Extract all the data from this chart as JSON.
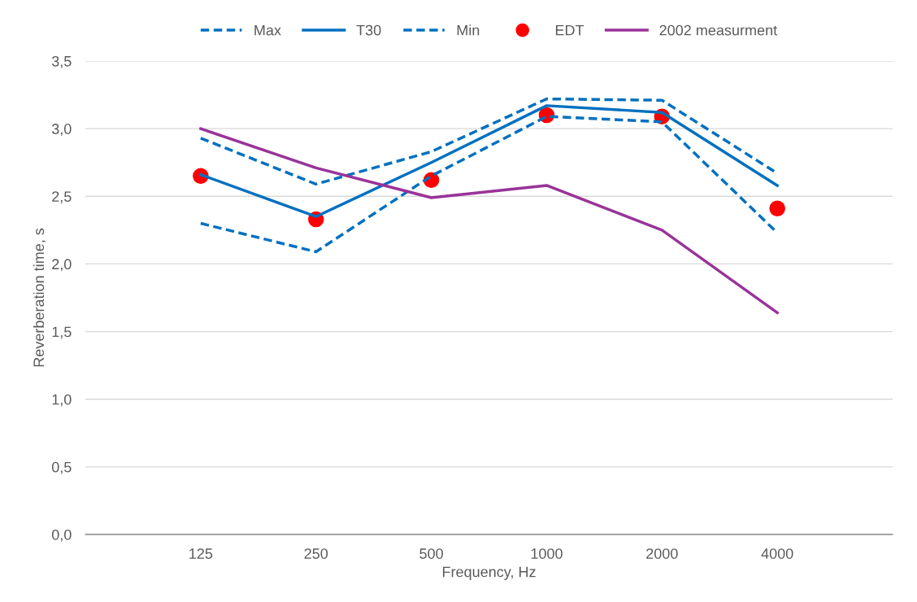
{
  "chart_data": {
    "type": "line",
    "xlabel": "Frequency, Hz",
    "ylabel": "Reverberation time, s",
    "categories": [
      "125",
      "250",
      "500",
      "1000",
      "2000",
      "4000"
    ],
    "series": [
      {
        "name": "Max",
        "color": "#0070c0",
        "line_style": "dashed",
        "values": [
          2.93,
          2.59,
          2.83,
          3.22,
          3.21,
          2.67
        ]
      },
      {
        "name": "T30",
        "color": "#0070c0",
        "line_style": "solid",
        "values": [
          2.66,
          2.35,
          2.75,
          3.17,
          3.12,
          2.58
        ]
      },
      {
        "name": "Min",
        "color": "#0070c0",
        "line_style": "dashed",
        "values": [
          2.3,
          2.09,
          2.65,
          3.09,
          3.05,
          2.23
        ]
      },
      {
        "name": "EDT",
        "color": "#ff0000",
        "type": "scatter",
        "marker": "circle",
        "values": [
          2.65,
          2.33,
          2.62,
          3.1,
          3.09,
          2.41
        ]
      },
      {
        "name": "2002 measurment",
        "color": "#993399",
        "line_style": "solid",
        "values": [
          3.0,
          2.71,
          2.49,
          2.58,
          2.25,
          1.64
        ]
      }
    ],
    "ylim": [
      0,
      3.5
    ],
    "yticks": [
      {
        "value": 0,
        "label": "0,0"
      },
      {
        "value": 0.5,
        "label": "0,5"
      },
      {
        "value": 1,
        "label": "1,0"
      },
      {
        "value": 1.5,
        "label": "1,5"
      },
      {
        "value": 2,
        "label": "2,0"
      },
      {
        "value": 2.5,
        "label": "2,5"
      },
      {
        "value": 3,
        "label": "3,0"
      },
      {
        "value": 3.5,
        "label": "3,5"
      }
    ],
    "grid": "y",
    "legend": "top"
  }
}
